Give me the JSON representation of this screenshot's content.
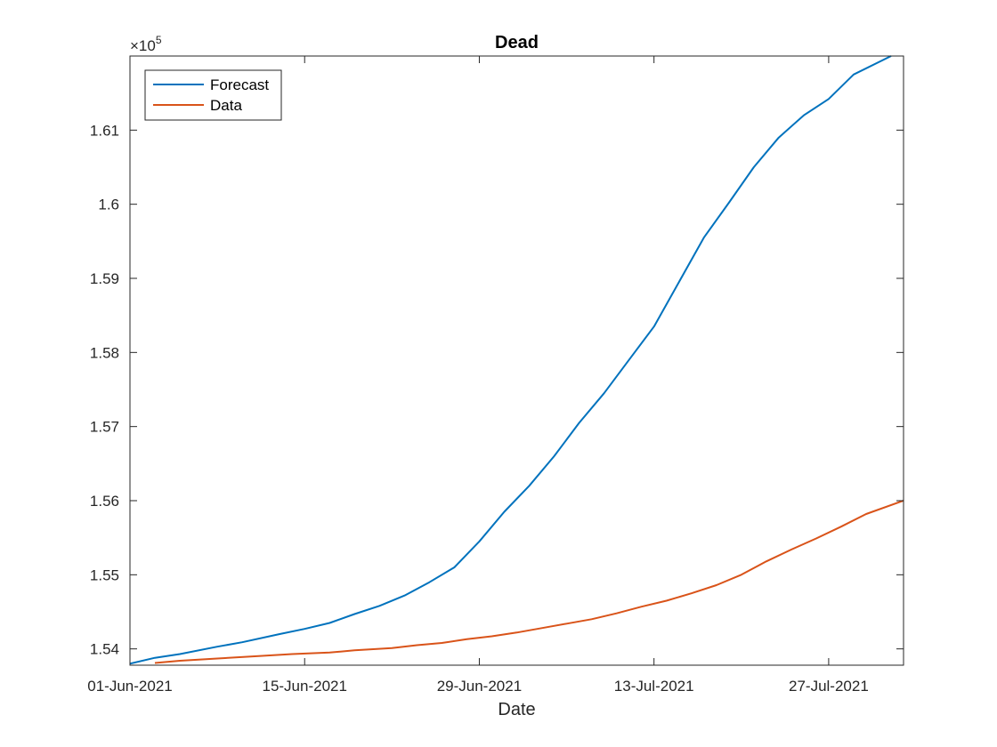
{
  "chart_data": {
    "type": "line",
    "title": "Dead",
    "xlabel": "Date",
    "ylabel": "",
    "y_exponent_label": "×10",
    "y_exponent_power": "5",
    "xlim": [
      "2021-06-01",
      "2021-08-02"
    ],
    "ylim": [
      153.78,
      162.0
    ],
    "y_scale_multiplier": 100000,
    "x_ticks": [
      "2021-06-01",
      "2021-06-15",
      "2021-06-29",
      "2021-07-13",
      "2021-07-27"
    ],
    "x_tick_labels": [
      "01-Jun-2021",
      "15-Jun-2021",
      "29-Jun-2021",
      "13-Jul-2021",
      "27-Jul-2021"
    ],
    "y_ticks": [
      154,
      155,
      156,
      157,
      158,
      159,
      160,
      161
    ],
    "y_tick_labels": [
      "1.54",
      "1.55",
      "1.56",
      "1.57",
      "1.58",
      "1.59",
      "1.6",
      "1.61"
    ],
    "grid": false,
    "legend_position": "top-left",
    "series": [
      {
        "name": "Forecast",
        "color": "#0072BD",
        "points": [
          [
            "2021-06-01",
            153.8
          ],
          [
            "2021-06-03",
            153.88
          ],
          [
            "2021-06-05",
            153.93
          ],
          [
            "2021-06-08",
            154.03
          ],
          [
            "2021-06-10",
            154.09
          ],
          [
            "2021-06-13",
            154.2
          ],
          [
            "2021-06-15",
            154.27
          ],
          [
            "2021-06-17",
            154.35
          ],
          [
            "2021-06-19",
            154.47
          ],
          [
            "2021-06-21",
            154.58
          ],
          [
            "2021-06-23",
            154.72
          ],
          [
            "2021-06-25",
            154.9
          ],
          [
            "2021-06-27",
            155.1
          ],
          [
            "2021-06-29",
            155.45
          ],
          [
            "2021-07-01",
            155.85
          ],
          [
            "2021-07-03",
            156.2
          ],
          [
            "2021-07-05",
            156.6
          ],
          [
            "2021-07-07",
            157.05
          ],
          [
            "2021-07-09",
            157.45
          ],
          [
            "2021-07-11",
            157.9
          ],
          [
            "2021-07-13",
            158.35
          ],
          [
            "2021-07-15",
            158.95
          ],
          [
            "2021-07-17",
            159.55
          ],
          [
            "2021-07-19",
            160.02
          ],
          [
            "2021-07-21",
            160.5
          ],
          [
            "2021-07-23",
            160.9
          ],
          [
            "2021-07-25",
            161.2
          ],
          [
            "2021-07-27",
            161.42
          ],
          [
            "2021-07-29",
            161.75
          ],
          [
            "2021-08-01",
            162.0
          ]
        ]
      },
      {
        "name": "Data",
        "color": "#D95319",
        "points": [
          [
            "2021-06-03",
            153.81
          ],
          [
            "2021-06-05",
            153.84
          ],
          [
            "2021-06-08",
            153.87
          ],
          [
            "2021-06-11",
            153.9
          ],
          [
            "2021-06-14",
            153.93
          ],
          [
            "2021-06-17",
            153.95
          ],
          [
            "2021-06-19",
            153.98
          ],
          [
            "2021-06-22",
            154.01
          ],
          [
            "2021-06-24",
            154.05
          ],
          [
            "2021-06-26",
            154.08
          ],
          [
            "2021-06-28",
            154.13
          ],
          [
            "2021-06-30",
            154.17
          ],
          [
            "2021-07-02",
            154.22
          ],
          [
            "2021-07-04",
            154.28
          ],
          [
            "2021-07-06",
            154.34
          ],
          [
            "2021-07-08",
            154.4
          ],
          [
            "2021-07-10",
            154.48
          ],
          [
            "2021-07-12",
            154.57
          ],
          [
            "2021-07-14",
            154.65
          ],
          [
            "2021-07-16",
            154.75
          ],
          [
            "2021-07-18",
            154.86
          ],
          [
            "2021-07-20",
            155.0
          ],
          [
            "2021-07-22",
            155.18
          ],
          [
            "2021-07-24",
            155.34
          ],
          [
            "2021-07-26",
            155.49
          ],
          [
            "2021-07-28",
            155.65
          ],
          [
            "2021-07-30",
            155.82
          ],
          [
            "2021-08-02",
            156.0
          ]
        ]
      }
    ]
  }
}
